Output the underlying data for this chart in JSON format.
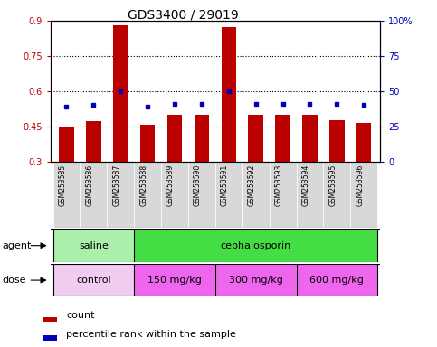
{
  "title": "GDS3400 / 29019",
  "categories": [
    "GSM253585",
    "GSM253586",
    "GSM253587",
    "GSM253588",
    "GSM253589",
    "GSM253590",
    "GSM253591",
    "GSM253592",
    "GSM253593",
    "GSM253594",
    "GSM253595",
    "GSM253596"
  ],
  "red_bars": [
    0.45,
    0.47,
    0.879,
    0.455,
    0.5,
    0.5,
    0.873,
    0.5,
    0.5,
    0.5,
    0.475,
    0.465
  ],
  "blue_dots": [
    0.535,
    0.54,
    0.6,
    0.535,
    0.546,
    0.546,
    0.6,
    0.545,
    0.545,
    0.546,
    0.545,
    0.54
  ],
  "ylim": [
    0.3,
    0.9
  ],
  "yticks": [
    0.3,
    0.45,
    0.6,
    0.75,
    0.9
  ],
  "ytick_labels": [
    "0.3",
    "0.45",
    "0.6",
    "0.75",
    "0.9"
  ],
  "right_yticks": [
    0,
    25,
    50,
    75,
    100
  ],
  "right_ytick_labels": [
    "0",
    "25",
    "50",
    "75",
    "100%"
  ],
  "dotted_lines": [
    0.45,
    0.6,
    0.75
  ],
  "bar_color": "#bb0000",
  "dot_color": "#0000bb",
  "agent_groups": [
    {
      "label": "saline",
      "start": 0,
      "end": 3,
      "color": "#aaf0aa"
    },
    {
      "label": "cephalosporin",
      "start": 3,
      "end": 12,
      "color": "#44dd44"
    }
  ],
  "dose_groups": [
    {
      "label": "control",
      "start": 0,
      "end": 3,
      "color": "#f0ccf0"
    },
    {
      "label": "150 mg/kg",
      "start": 3,
      "end": 6,
      "color": "#ee66ee"
    },
    {
      "label": "300 mg/kg",
      "start": 6,
      "end": 9,
      "color": "#ee66ee"
    },
    {
      "label": "600 mg/kg",
      "start": 9,
      "end": 12,
      "color": "#ee66ee"
    }
  ],
  "legend_count_color": "#bb0000",
  "legend_dot_color": "#0000bb",
  "xlabel_agent": "agent",
  "xlabel_dose": "dose",
  "title_fontsize": 10,
  "tick_fontsize": 7,
  "group_fontsize": 8,
  "legend_fontsize": 8,
  "bar_width": 0.55
}
